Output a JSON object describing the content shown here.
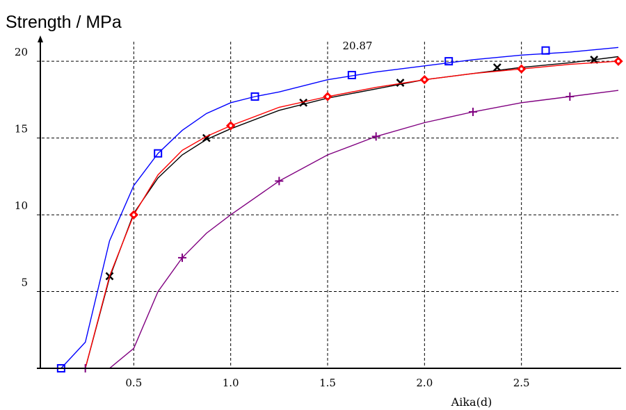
{
  "chart_data": {
    "type": "line",
    "title": "Strength / MPa",
    "xlabel": "Aika(d)",
    "ylabel": "",
    "xlim": [
      0,
      3.0
    ],
    "ylim": [
      0,
      21.5
    ],
    "x_ticks": [
      0.5,
      1.0,
      1.5,
      2.0,
      2.5
    ],
    "x_tick_labels": [
      "0.5",
      "1.0",
      "1.5",
      "2.0",
      "2.5"
    ],
    "y_ticks": [
      5,
      10,
      15,
      20
    ],
    "y_tick_labels": [
      "5",
      "10",
      "15",
      "20"
    ],
    "grid": true,
    "annotation": {
      "text": "20.87",
      "x": 1.5,
      "y": 21.1
    },
    "series": [
      {
        "color": "#0000ff",
        "marker": "square",
        "line_x": [
          0,
          0.125,
          0.25,
          0.375,
          0.5,
          0.625,
          0.75,
          0.875,
          1.0,
          1.125,
          1.25,
          1.5,
          1.75,
          2.0,
          2.25,
          2.5,
          2.75,
          3.0
        ],
        "line_y": [
          0,
          0,
          1.7,
          8.3,
          11.9,
          14.0,
          15.5,
          16.6,
          17.3,
          17.7,
          18.0,
          18.8,
          19.3,
          19.7,
          20.1,
          20.4,
          20.6,
          20.9
        ],
        "marker_x": [
          0.125,
          0.625,
          1.125,
          1.625,
          2.125,
          2.625
        ],
        "marker_y": [
          0,
          14.0,
          17.7,
          19.1,
          20.0,
          20.7
        ]
      },
      {
        "color": "#000000",
        "marker": "x",
        "line_x": [
          0,
          0.25,
          0.375,
          0.5,
          0.625,
          0.75,
          0.875,
          1.0,
          1.25,
          1.5,
          1.75,
          2.0,
          2.25,
          2.5,
          2.75,
          3.0
        ],
        "line_y": [
          0,
          0,
          5.9,
          10.1,
          12.4,
          13.9,
          14.9,
          15.6,
          16.8,
          17.6,
          18.2,
          18.8,
          19.2,
          19.6,
          19.9,
          20.3
        ],
        "marker_x": [
          0.375,
          0.875,
          1.375,
          1.875,
          2.375,
          2.875
        ],
        "marker_y": [
          6.0,
          15.0,
          17.3,
          18.6,
          19.6,
          20.1
        ]
      },
      {
        "color": "#ff0000",
        "marker": "diamond",
        "line_x": [
          0,
          0.25,
          0.375,
          0.5,
          0.625,
          0.75,
          0.875,
          1.0,
          1.25,
          1.5,
          1.75,
          2.0,
          2.25,
          2.5,
          2.75,
          3.0
        ],
        "line_y": [
          0,
          0,
          6.0,
          10.0,
          12.6,
          14.2,
          15.1,
          15.8,
          17.0,
          17.7,
          18.3,
          18.8,
          19.2,
          19.5,
          19.8,
          20.0
        ],
        "marker_x": [
          0.5,
          1.0,
          1.5,
          2.0,
          2.5,
          3.0
        ],
        "marker_y": [
          10.0,
          15.8,
          17.7,
          18.8,
          19.5,
          20.0
        ]
      },
      {
        "color": "#800080",
        "marker": "plus",
        "line_x": [
          0,
          0.375,
          0.5,
          0.625,
          0.75,
          0.875,
          1.0,
          1.25,
          1.5,
          1.75,
          2.0,
          2.25,
          2.5,
          2.75,
          3.0
        ],
        "line_y": [
          0,
          0,
          1.3,
          5.0,
          7.2,
          8.8,
          10.0,
          12.2,
          13.9,
          15.1,
          16.0,
          16.7,
          17.3,
          17.7,
          18.1
        ],
        "marker_x": [
          0.25,
          0.75,
          1.25,
          1.75,
          2.25,
          2.75
        ],
        "marker_y": [
          0,
          7.2,
          12.2,
          15.1,
          16.7,
          17.7
        ]
      }
    ]
  }
}
